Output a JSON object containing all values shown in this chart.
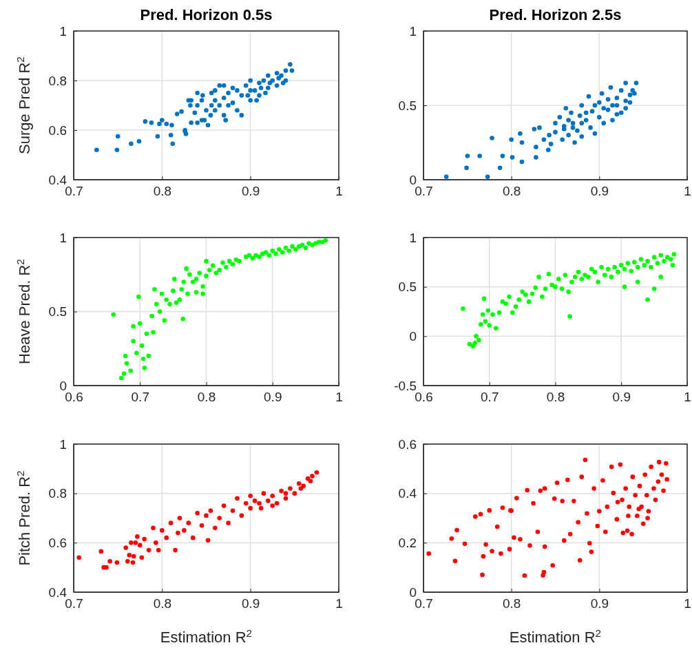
{
  "chart_data": [
    {
      "type": "scatter",
      "title": "Pred. Horizon 0.5s",
      "ylabel": "Surge Pred R$^{2}$",
      "color": "#0072bd",
      "marker": "circle",
      "grid": true,
      "xlim": [
        0.7,
        1
      ],
      "ylim": [
        0.4,
        1
      ],
      "xticks": [
        0.7,
        0.8,
        0.9,
        1
      ],
      "yticks": [
        0.4,
        0.6,
        0.8,
        1
      ],
      "x": [
        0.726,
        0.749,
        0.75,
        0.765,
        0.774,
        0.781,
        0.788,
        0.795,
        0.797,
        0.8,
        0.805,
        0.81,
        0.811,
        0.812,
        0.826,
        0.826,
        0.827,
        0.817,
        0.822,
        0.837,
        0.833,
        0.84,
        0.845,
        0.848,
        0.85,
        0.852,
        0.855,
        0.856,
        0.845,
        0.84,
        0.832,
        0.833,
        0.83,
        0.84,
        0.846,
        0.856,
        0.86,
        0.86,
        0.865,
        0.87,
        0.872,
        0.875,
        0.88,
        0.88,
        0.885,
        0.89,
        0.89,
        0.895,
        0.9,
        0.9,
        0.905,
        0.91,
        0.91,
        0.915,
        0.92,
        0.92,
        0.925,
        0.93,
        0.93,
        0.935,
        0.94,
        0.94,
        0.945,
        0.947,
        0.87,
        0.87,
        0.86,
        0.865,
        0.875,
        0.885,
        0.9,
        0.912,
        0.922,
        0.932,
        0.897,
        0.907,
        0.917,
        0.937
      ],
      "values": [
        0.52,
        0.52,
        0.575,
        0.545,
        0.555,
        0.635,
        0.63,
        0.575,
        0.625,
        0.64,
        0.625,
        0.58,
        0.62,
        0.545,
        0.595,
        0.6,
        0.585,
        0.665,
        0.675,
        0.67,
        0.63,
        0.63,
        0.64,
        0.64,
        0.68,
        0.62,
        0.66,
        0.7,
        0.72,
        0.7,
        0.7,
        0.72,
        0.72,
        0.75,
        0.74,
        0.75,
        0.72,
        0.68,
        0.7,
        0.66,
        0.64,
        0.75,
        0.77,
        0.71,
        0.68,
        0.66,
        0.74,
        0.78,
        0.8,
        0.72,
        0.76,
        0.79,
        0.74,
        0.8,
        0.82,
        0.77,
        0.8,
        0.83,
        0.78,
        0.82,
        0.84,
        0.8,
        0.865,
        0.84,
        0.78,
        0.73,
        0.76,
        0.78,
        0.7,
        0.76,
        0.76,
        0.77,
        0.79,
        0.81,
        0.74,
        0.72,
        0.75,
        0.79
      ]
    },
    {
      "type": "scatter",
      "title": "Pred. Horizon 2.5s",
      "color": "#0072bd",
      "marker": "circle",
      "grid": true,
      "xlim": [
        0.7,
        1
      ],
      "ylim": [
        0,
        1
      ],
      "xticks": [
        0.7,
        0.8,
        0.9,
        1
      ],
      "yticks": [
        0,
        0.5,
        1
      ],
      "x": [
        0.726,
        0.749,
        0.75,
        0.764,
        0.773,
        0.787,
        0.79,
        0.778,
        0.8,
        0.801,
        0.81,
        0.812,
        0.812,
        0.826,
        0.832,
        0.837,
        0.828,
        0.828,
        0.842,
        0.845,
        0.843,
        0.85,
        0.855,
        0.862,
        0.86,
        0.858,
        0.865,
        0.868,
        0.87,
        0.872,
        0.875,
        0.878,
        0.88,
        0.88,
        0.885,
        0.888,
        0.89,
        0.892,
        0.895,
        0.9,
        0.9,
        0.903,
        0.905,
        0.91,
        0.913,
        0.915,
        0.92,
        0.92,
        0.925,
        0.925,
        0.93,
        0.93,
        0.935,
        0.938,
        0.94,
        0.942,
        0.87,
        0.865,
        0.885,
        0.895,
        0.905,
        0.91,
        0.915,
        0.92,
        0.93,
        0.935,
        0.88,
        0.85,
        0.86
      ],
      "values": [
        0.02,
        0.08,
        0.16,
        0.16,
        0.02,
        0.08,
        0.16,
        0.28,
        0.27,
        0.15,
        0.31,
        0.25,
        0.12,
        0.34,
        0.35,
        0.27,
        0.15,
        0.22,
        0.2,
        0.24,
        0.3,
        0.38,
        0.42,
        0.48,
        0.34,
        0.27,
        0.3,
        0.45,
        0.38,
        0.25,
        0.33,
        0.43,
        0.5,
        0.29,
        0.4,
        0.56,
        0.35,
        0.46,
        0.31,
        0.42,
        0.52,
        0.58,
        0.38,
        0.47,
        0.62,
        0.4,
        0.5,
        0.55,
        0.45,
        0.6,
        0.53,
        0.65,
        0.57,
        0.6,
        0.58,
        0.65,
        0.35,
        0.4,
        0.45,
        0.5,
        0.48,
        0.54,
        0.5,
        0.44,
        0.48,
        0.52,
        0.38,
        0.32,
        0.36
      ]
    },
    {
      "type": "scatter",
      "ylabel": "Heave Pred. R$^{2}$",
      "color": "#00ff00",
      "marker": "circle",
      "grid": true,
      "xlim": [
        0.6,
        1
      ],
      "ylim": [
        0,
        1
      ],
      "xticks": [
        0.6,
        0.7,
        0.8,
        0.9,
        1
      ],
      "yticks": [
        0,
        0.5,
        1
      ],
      "x": [
        0.66,
        0.672,
        0.676,
        0.678,
        0.68,
        0.686,
        0.69,
        0.69,
        0.695,
        0.698,
        0.7,
        0.703,
        0.705,
        0.707,
        0.71,
        0.713,
        0.718,
        0.72,
        0.722,
        0.725,
        0.73,
        0.733,
        0.737,
        0.74,
        0.745,
        0.75,
        0.752,
        0.755,
        0.76,
        0.763,
        0.766,
        0.77,
        0.772,
        0.775,
        0.78,
        0.785,
        0.79,
        0.795,
        0.8,
        0.8,
        0.805,
        0.81,
        0.815,
        0.82,
        0.825,
        0.83,
        0.835,
        0.84,
        0.845,
        0.85,
        0.86,
        0.865,
        0.87,
        0.875,
        0.88,
        0.885,
        0.89,
        0.895,
        0.9,
        0.905,
        0.91,
        0.915,
        0.92,
        0.925,
        0.93,
        0.935,
        0.94,
        0.945,
        0.95,
        0.955,
        0.96,
        0.965,
        0.97,
        0.975,
        0.98,
        0.785,
        0.765,
        0.795
      ],
      "values": [
        0.48,
        0.05,
        0.08,
        0.2,
        0.15,
        0.1,
        0.4,
        0.3,
        0.22,
        0.6,
        0.42,
        0.27,
        0.18,
        0.12,
        0.35,
        0.2,
        0.47,
        0.36,
        0.65,
        0.55,
        0.5,
        0.62,
        0.44,
        0.58,
        0.55,
        0.64,
        0.72,
        0.56,
        0.58,
        0.65,
        0.7,
        0.79,
        0.62,
        0.75,
        0.7,
        0.72,
        0.76,
        0.62,
        0.84,
        0.74,
        0.78,
        0.81,
        0.76,
        0.78,
        0.83,
        0.8,
        0.84,
        0.82,
        0.85,
        0.84,
        0.87,
        0.88,
        0.86,
        0.88,
        0.87,
        0.89,
        0.9,
        0.88,
        0.91,
        0.89,
        0.92,
        0.9,
        0.93,
        0.91,
        0.94,
        0.92,
        0.94,
        0.95,
        0.93,
        0.96,
        0.95,
        0.96,
        0.97,
        0.97,
        0.98,
        0.63,
        0.45,
        0.67
      ]
    },
    {
      "type": "scatter",
      "color": "#00ff00",
      "marker": "circle",
      "grid": true,
      "xlim": [
        0.6,
        1
      ],
      "ylim": [
        -0.5,
        1
      ],
      "xticks": [
        0.6,
        0.7,
        0.8,
        0.9,
        1
      ],
      "yticks": [
        -0.5,
        0,
        0.5,
        1
      ],
      "x": [
        0.66,
        0.67,
        0.675,
        0.678,
        0.68,
        0.684,
        0.687,
        0.69,
        0.692,
        0.694,
        0.698,
        0.7,
        0.705,
        0.71,
        0.715,
        0.72,
        0.725,
        0.73,
        0.735,
        0.74,
        0.745,
        0.75,
        0.755,
        0.76,
        0.765,
        0.77,
        0.775,
        0.78,
        0.785,
        0.79,
        0.795,
        0.8,
        0.805,
        0.81,
        0.815,
        0.82,
        0.822,
        0.825,
        0.83,
        0.835,
        0.84,
        0.845,
        0.85,
        0.855,
        0.86,
        0.865,
        0.87,
        0.875,
        0.88,
        0.885,
        0.89,
        0.895,
        0.9,
        0.905,
        0.91,
        0.915,
        0.92,
        0.925,
        0.93,
        0.935,
        0.94,
        0.94,
        0.945,
        0.95,
        0.955,
        0.96,
        0.965,
        0.97,
        0.975,
        0.98,
        0.905,
        0.925,
        0.95,
        0.96,
        0.978
      ],
      "values": [
        0.28,
        -0.08,
        -0.1,
        -0.07,
        0.0,
        -0.04,
        0.12,
        0.22,
        0.38,
        0.15,
        0.26,
        0.11,
        0.22,
        0.08,
        0.24,
        0.35,
        0.33,
        0.4,
        0.24,
        0.3,
        0.37,
        0.45,
        0.42,
        0.35,
        0.43,
        0.49,
        0.6,
        0.4,
        0.48,
        0.63,
        0.52,
        0.5,
        0.58,
        0.48,
        0.62,
        0.45,
        0.2,
        0.55,
        0.6,
        0.65,
        0.58,
        0.62,
        0.6,
        0.68,
        0.65,
        0.55,
        0.7,
        0.62,
        0.68,
        0.6,
        0.7,
        0.65,
        0.72,
        0.68,
        0.74,
        0.66,
        0.75,
        0.7,
        0.78,
        0.72,
        0.37,
        0.76,
        0.7,
        0.8,
        0.74,
        0.82,
        0.76,
        0.8,
        0.78,
        0.83,
        0.5,
        0.55,
        0.48,
        0.6,
        0.72
      ]
    },
    {
      "type": "scatter",
      "ylabel": "Pitch Pred. R$^{2}$",
      "xlabel": "Estimation R$^{2}$",
      "color": "#ff0000",
      "marker": "circle",
      "grid": true,
      "xlim": [
        0.7,
        1
      ],
      "ylim": [
        0.4,
        1
      ],
      "xticks": [
        0.7,
        0.8,
        0.9,
        1
      ],
      "yticks": [
        0.4,
        0.6,
        0.8,
        1
      ],
      "x": [
        0.706,
        0.731,
        0.734,
        0.737,
        0.741,
        0.749,
        0.759,
        0.761,
        0.763,
        0.765,
        0.767,
        0.768,
        0.77,
        0.772,
        0.775,
        0.777,
        0.78,
        0.785,
        0.79,
        0.793,
        0.796,
        0.8,
        0.805,
        0.81,
        0.815,
        0.818,
        0.82,
        0.825,
        0.83,
        0.835,
        0.84,
        0.845,
        0.85,
        0.852,
        0.855,
        0.86,
        0.865,
        0.87,
        0.875,
        0.88,
        0.885,
        0.89,
        0.895,
        0.9,
        0.905,
        0.91,
        0.915,
        0.92,
        0.925,
        0.93,
        0.935,
        0.94,
        0.945,
        0.95,
        0.955,
        0.96,
        0.965,
        0.97,
        0.975,
        0.925,
        0.94,
        0.957,
        0.968,
        0.912,
        0.9
      ],
      "values": [
        0.54,
        0.565,
        0.5,
        0.5,
        0.525,
        0.52,
        0.58,
        0.525,
        0.55,
        0.6,
        0.52,
        0.545,
        0.6,
        0.625,
        0.59,
        0.54,
        0.615,
        0.57,
        0.66,
        0.6,
        0.57,
        0.65,
        0.62,
        0.68,
        0.57,
        0.64,
        0.7,
        0.65,
        0.68,
        0.62,
        0.72,
        0.67,
        0.71,
        0.61,
        0.73,
        0.66,
        0.7,
        0.75,
        0.68,
        0.73,
        0.78,
        0.71,
        0.76,
        0.74,
        0.77,
        0.76,
        0.8,
        0.77,
        0.79,
        0.76,
        0.81,
        0.78,
        0.82,
        0.8,
        0.84,
        0.83,
        0.86,
        0.87,
        0.885,
        0.75,
        0.8,
        0.82,
        0.85,
        0.74,
        0.79
      ]
    },
    {
      "type": "scatter",
      "xlabel": "Estimation R$^{2}$",
      "color": "#ff0000",
      "marker": "circle",
      "grid": true,
      "xlim": [
        0.7,
        1
      ],
      "ylim": [
        0,
        0.6
      ],
      "xticks": [
        0.7,
        0.8,
        0.9,
        1
      ],
      "yticks": [
        0,
        0.2,
        0.4,
        0.6
      ],
      "x": [
        0.706,
        0.736,
        0.732,
        0.738,
        0.747,
        0.759,
        0.765,
        0.767,
        0.768,
        0.771,
        0.775,
        0.778,
        0.784,
        0.788,
        0.79,
        0.798,
        0.799,
        0.8,
        0.803,
        0.806,
        0.81,
        0.815,
        0.818,
        0.821,
        0.825,
        0.83,
        0.833,
        0.836,
        0.837,
        0.838,
        0.838,
        0.847,
        0.849,
        0.852,
        0.858,
        0.86,
        0.864,
        0.867,
        0.871,
        0.876,
        0.878,
        0.88,
        0.884,
        0.886,
        0.889,
        0.891,
        0.894,
        0.898,
        0.9,
        0.904,
        0.907,
        0.909,
        0.914,
        0.916,
        0.92,
        0.924,
        0.926,
        0.927,
        0.93,
        0.932,
        0.934,
        0.937,
        0.938,
        0.941,
        0.943,
        0.946,
        0.948,
        0.95,
        0.952,
        0.954,
        0.956,
        0.959,
        0.962,
        0.964,
        0.967,
        0.968,
        0.971,
        0.973,
        0.976,
        0.977,
        0.945,
        0.955,
        0.933,
        0.921
      ],
      "values": [
        0.156,
        0.126,
        0.217,
        0.251,
        0.196,
        0.306,
        0.316,
        0.07,
        0.145,
        0.193,
        0.331,
        0.166,
        0.265,
        0.156,
        0.342,
        0.174,
        0.331,
        0.33,
        0.221,
        0.381,
        0.214,
        0.067,
        0.413,
        0.189,
        0.36,
        0.244,
        0.411,
        0.068,
        0.081,
        0.184,
        0.42,
        0.108,
        0.379,
        0.443,
        0.369,
        0.209,
        0.455,
        0.235,
        0.369,
        0.283,
        0.129,
        0.467,
        0.536,
        0.319,
        0.198,
        0.163,
        0.42,
        0.268,
        0.328,
        0.453,
        0.244,
        0.346,
        0.508,
        0.402,
        0.295,
        0.517,
        0.374,
        0.24,
        0.42,
        0.249,
        0.346,
        0.235,
        0.467,
        0.393,
        0.309,
        0.43,
        0.346,
        0.277,
        0.476,
        0.393,
        0.328,
        0.508,
        0.42,
        0.374,
        0.448,
        0.527,
        0.476,
        0.411,
        0.522,
        0.457,
        0.337,
        0.3,
        0.309,
        0.365
      ]
    }
  ]
}
